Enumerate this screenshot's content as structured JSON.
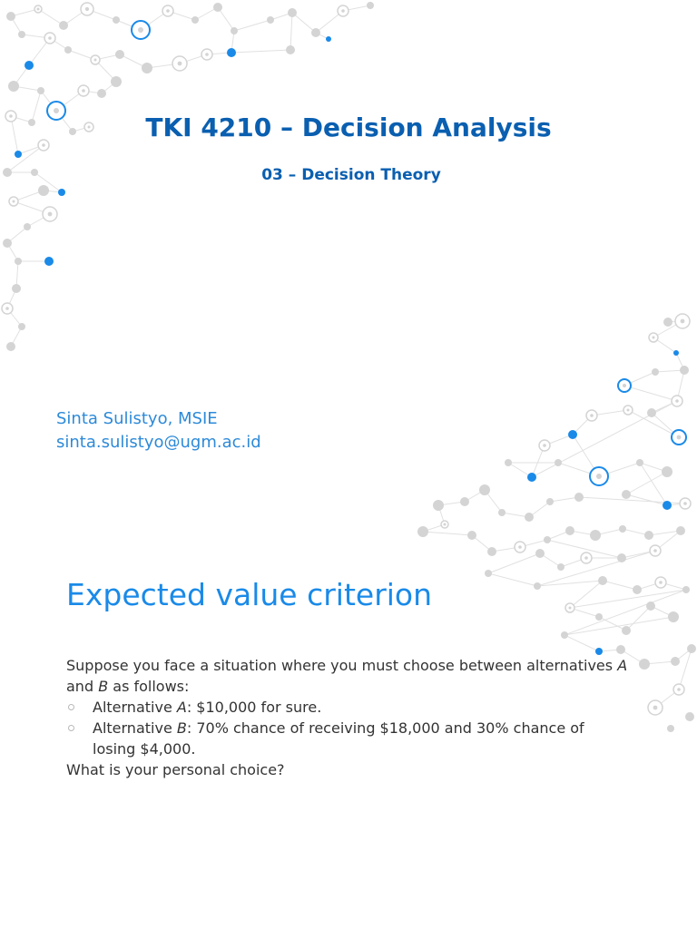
{
  "slide": {
    "title": "TKI 4210 – Decision Analysis",
    "subtitle": "03 – Decision Theory",
    "author_name": "Sinta Sulistyo, MSIE",
    "author_email": "sinta.sulistyo@ugm.ac.id"
  },
  "section": {
    "heading": "Expected value criterion",
    "intro_part1": "Suppose you face a situation where you must choose between alternatives ",
    "intro_var_a": "A",
    "intro_and": " and ",
    "intro_var_b": "B",
    "intro_part2": " as follows:",
    "bullets": [
      {
        "prefix": "Alternative ",
        "var": "A",
        "text": ": $10,000 for sure."
      },
      {
        "prefix": "Alternative ",
        "var": "B",
        "text": ": 70% chance of receiving $18,000 and 30% chance of losing $4,000."
      }
    ],
    "question": "What is your personal choice?"
  },
  "decoration": {
    "icon": "network-nodes-icon",
    "node_color_blue": "#1a8ae8",
    "node_color_gray": "#d4d4d4"
  }
}
